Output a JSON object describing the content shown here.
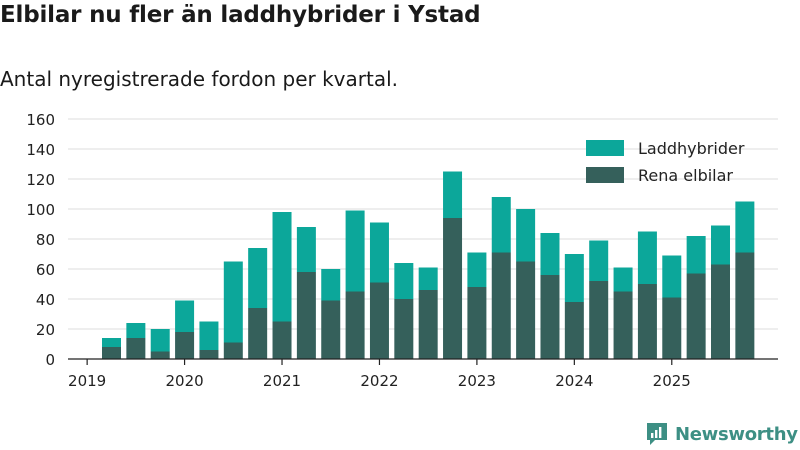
{
  "title": "Elbilar nu fler än laddhybrider i Ystad",
  "subtitle": "Antal nyregistrerade fordon per kvartal.",
  "brand": "Newsworthy",
  "colors": {
    "laddhybrider": "#0ca79a",
    "elbilar": "#35605b",
    "grid": "#dcdcdc",
    "axis": "#222222",
    "brand": "#3d8f84"
  },
  "chart_data": {
    "type": "bar",
    "stacked": true,
    "x_tick_labels": [
      "2019",
      "2020",
      "2021",
      "2022",
      "2023",
      "2024",
      "2025"
    ],
    "categories": [
      "2019 Q2",
      "2019 Q3",
      "2019 Q4",
      "2020 Q1",
      "2020 Q2",
      "2020 Q3",
      "2020 Q4",
      "2021 Q1",
      "2021 Q2",
      "2021 Q3",
      "2021 Q4",
      "2022 Q1",
      "2022 Q2",
      "2022 Q3",
      "2022 Q4",
      "2023 Q1",
      "2023 Q2",
      "2023 Q3",
      "2023 Q4",
      "2024 Q1",
      "2024 Q2",
      "2024 Q3",
      "2024 Q4",
      "2025 Q1",
      "2025 Q2",
      "2025 Q3",
      "2025 Q4"
    ],
    "series": [
      {
        "name": "Rena elbilar",
        "color": "#35605b",
        "values": [
          8,
          14,
          5,
          18,
          6,
          11,
          34,
          25,
          58,
          39,
          45,
          51,
          40,
          46,
          94,
          48,
          71,
          65,
          56,
          38,
          52,
          45,
          50,
          41,
          57,
          63,
          71
        ]
      },
      {
        "name": "Laddhybrider",
        "color": "#0ca79a",
        "values": [
          6,
          10,
          15,
          21,
          19,
          54,
          40,
          73,
          30,
          21,
          54,
          40,
          24,
          15,
          31,
          23,
          37,
          35,
          28,
          32,
          27,
          16,
          35,
          28,
          25,
          26,
          34
        ]
      }
    ],
    "y_ticks": [
      0,
      20,
      40,
      60,
      80,
      100,
      120,
      140,
      160
    ],
    "ylim": [
      0,
      160
    ],
    "grid": true,
    "legend_position": "top-right",
    "legend": [
      "Laddhybrider",
      "Rena elbilar"
    ]
  }
}
